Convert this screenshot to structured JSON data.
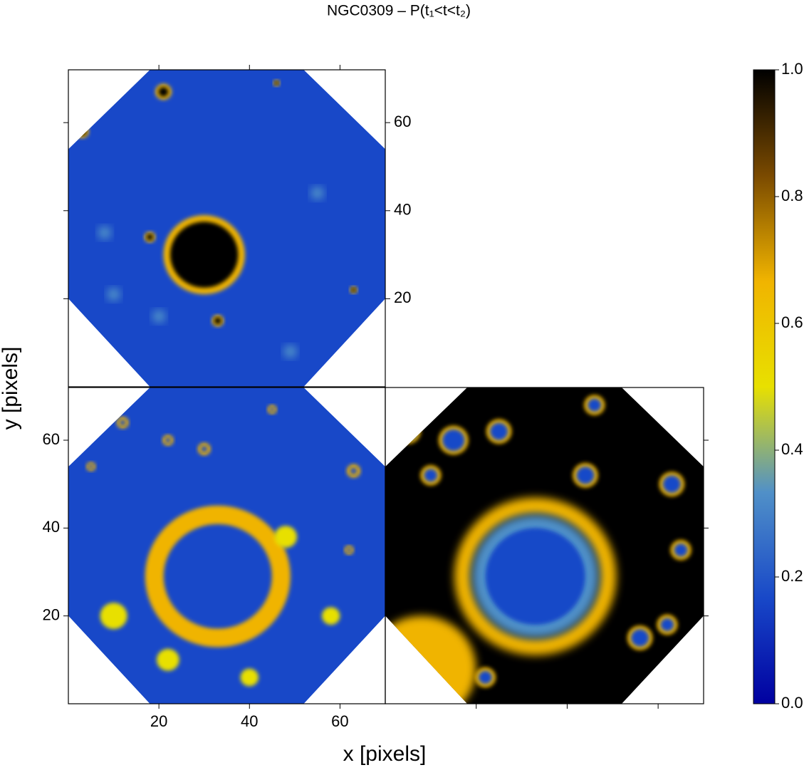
{
  "chart_data": {
    "type": "heatmap",
    "title": "NGC0309 – P(t₁<t<t₂)",
    "x_label": "x [pixels]",
    "y_label": "y [pixels]",
    "xlim": [
      0,
      70
    ],
    "ylim": [
      0,
      72
    ],
    "xticks": [
      20,
      40,
      60
    ],
    "yticks": [
      20,
      40,
      60
    ],
    "colorbar": {
      "lim": [
        0,
        1
      ],
      "ticks": [
        {
          "value": 0,
          "label": "0.0"
        },
        0.2,
        0.4,
        0.6,
        0.8,
        {
          "value": 1,
          "label": "1.0"
        }
      ],
      "colors": [
        "#0000a0",
        "#1848c8",
        "#5090c8",
        "#e8e000",
        "#f0b400",
        "#7a4a00",
        "#000000"
      ]
    }
  }
}
